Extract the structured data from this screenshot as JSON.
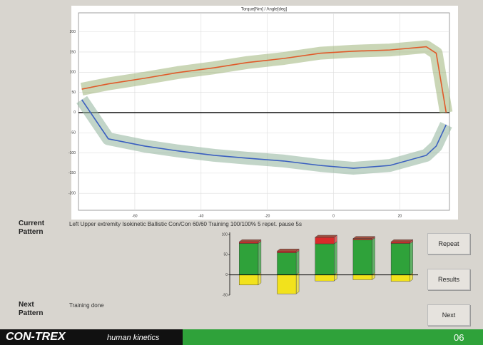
{
  "screen": {
    "current_label": "Current Pattern",
    "current_pattern": "Left Upper extremity Isokinetic Ballistic Con/Con 60/60 Training 100/100% 5 repet. pause 5s",
    "next_label": "Next Pattern",
    "next_pattern": "Training done",
    "buttons": [
      "Repeat",
      "Results",
      "Next"
    ],
    "brand": "CON-TREX",
    "brand_sub": "human kinetics",
    "page_number": "06"
  },
  "chart_data": [
    {
      "type": "line",
      "title": "Torque[Nm] / Angle[deg]",
      "x": [
        -76,
        -68,
        -57,
        -47,
        -36,
        -26,
        -15,
        -4,
        6,
        17,
        28,
        31,
        34
      ],
      "series": [
        {
          "color": "#e05a2a",
          "band_color": "#9fb57a",
          "values": [
            58,
            71,
            85,
            99,
            111,
            124,
            134,
            147,
            152,
            155,
            163,
            147,
            0
          ]
        },
        {
          "color": "#3a5fc0",
          "band_color": "#8fb39a",
          "values": [
            32,
            -65,
            -83,
            -95,
            -106,
            -113,
            -120,
            -131,
            -138,
            -131,
            -106,
            -83,
            -30
          ]
        }
      ],
      "xlim": [
        -77,
        35
      ],
      "ylim": [
        -242,
        247
      ],
      "xticks": [
        -60,
        -40,
        -20,
        0,
        20
      ],
      "yticks": [
        200,
        150,
        100,
        50,
        0,
        -50,
        -100,
        -150,
        -200
      ],
      "grid": true
    },
    {
      "type": "bar",
      "stacked": true,
      "categories": [
        null,
        null,
        null,
        null,
        null
      ],
      "series": [
        {
          "color": "#2fa23a",
          "values": [
            78,
            55,
            77,
            87,
            78
          ]
        },
        {
          "color": "#d92a2a",
          "values": [
            4,
            4,
            16,
            3,
            4
          ]
        },
        {
          "color": "#f2e21c",
          "values": [
            -25,
            -47,
            -15,
            -12,
            -16
          ]
        }
      ],
      "ylim": [
        -50,
        100
      ],
      "yticks": [
        100,
        50,
        0,
        -50
      ]
    }
  ]
}
